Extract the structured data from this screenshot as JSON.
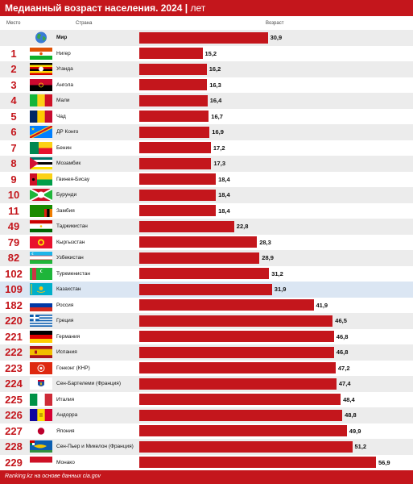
{
  "header": {
    "title": "Медианный возраст населения. 2024",
    "unit": "лет"
  },
  "columns": {
    "rank": "Место",
    "country": "Страна",
    "value": "Возраст"
  },
  "footer": {
    "source": "Ranking.kz на основе данных cia.gov"
  },
  "colors": {
    "accent": "#c4161c",
    "highlight_row": "#dbe6f3",
    "alt_row": "#ececec"
  },
  "chart_data": {
    "type": "bar",
    "orientation": "horizontal",
    "title": "Медианный возраст населения. 2024",
    "unit": "лет",
    "xlim": [
      0,
      60
    ],
    "highlight": "Казахстан",
    "rows": [
      {
        "rank": "",
        "country": "Мир",
        "value": 30.9,
        "label": "30,9",
        "flag": "globe-icon"
      },
      {
        "rank": "1",
        "country": "Нигер",
        "value": 15.2,
        "label": "15,2",
        "flag": "niger-flag-icon"
      },
      {
        "rank": "2",
        "country": "Уганда",
        "value": 16.2,
        "label": "16,2",
        "flag": "uganda-flag-icon"
      },
      {
        "rank": "3",
        "country": "Ангола",
        "value": 16.3,
        "label": "16,3",
        "flag": "angola-flag-icon"
      },
      {
        "rank": "4",
        "country": "Мали",
        "value": 16.4,
        "label": "16,4",
        "flag": "mali-flag-icon"
      },
      {
        "rank": "5",
        "country": "Чад",
        "value": 16.7,
        "label": "16,7",
        "flag": "chad-flag-icon"
      },
      {
        "rank": "6",
        "country": "ДР Конго",
        "value": 16.9,
        "label": "16,9",
        "flag": "dr-congo-flag-icon"
      },
      {
        "rank": "7",
        "country": "Бенин",
        "value": 17.2,
        "label": "17,2",
        "flag": "benin-flag-icon"
      },
      {
        "rank": "8",
        "country": "Мозамбик",
        "value": 17.3,
        "label": "17,3",
        "flag": "mozambique-flag-icon"
      },
      {
        "rank": "9",
        "country": "Гвинея-Бисау",
        "value": 18.4,
        "label": "18,4",
        "flag": "guinea-bissau-flag-icon"
      },
      {
        "rank": "10",
        "country": "Бурунди",
        "value": 18.4,
        "label": "18,4",
        "flag": "burundi-flag-icon"
      },
      {
        "rank": "11",
        "country": "Замбия",
        "value": 18.4,
        "label": "18,4",
        "flag": "zambia-flag-icon"
      },
      {
        "rank": "49",
        "country": "Таджикистан",
        "value": 22.8,
        "label": "22,8",
        "flag": "tajikistan-flag-icon"
      },
      {
        "rank": "79",
        "country": "Кыргызстан",
        "value": 28.3,
        "label": "28,3",
        "flag": "kyrgyzstan-flag-icon"
      },
      {
        "rank": "82",
        "country": "Узбекистан",
        "value": 28.9,
        "label": "28,9",
        "flag": "uzbekistan-flag-icon"
      },
      {
        "rank": "102",
        "country": "Туркменистан",
        "value": 31.2,
        "label": "31,2",
        "flag": "turkmenistan-flag-icon"
      },
      {
        "rank": "109",
        "country": "Казахстан",
        "value": 31.9,
        "label": "31,9",
        "flag": "kazakhstan-flag-icon"
      },
      {
        "rank": "182",
        "country": "Россия",
        "value": 41.9,
        "label": "41,9",
        "flag": "russia-flag-icon"
      },
      {
        "rank": "220",
        "country": "Греция",
        "value": 46.5,
        "label": "46,5",
        "flag": "greece-flag-icon"
      },
      {
        "rank": "221",
        "country": "Германия",
        "value": 46.8,
        "label": "46,8",
        "flag": "germany-flag-icon"
      },
      {
        "rank": "222",
        "country": "Испания",
        "value": 46.8,
        "label": "46,8",
        "flag": "spain-flag-icon"
      },
      {
        "rank": "223",
        "country": "Гонконг (КНР)",
        "value": 47.2,
        "label": "47,2",
        "flag": "hong-kong-flag-icon"
      },
      {
        "rank": "224",
        "country": "Сен-Бартелеми (Франция)",
        "value": 47.4,
        "label": "47,4",
        "flag": "saint-barthelemy-flag-icon"
      },
      {
        "rank": "225",
        "country": "Италия",
        "value": 48.4,
        "label": "48,4",
        "flag": "italy-flag-icon"
      },
      {
        "rank": "226",
        "country": "Андорра",
        "value": 48.8,
        "label": "48,8",
        "flag": "andorra-flag-icon"
      },
      {
        "rank": "227",
        "country": "Япония",
        "value": 49.9,
        "label": "49,9",
        "flag": "japan-flag-icon"
      },
      {
        "rank": "228",
        "country": "Сен-Пьер и Микелон (Франция)",
        "value": 51.2,
        "label": "51,2",
        "flag": "saint-pierre-miquelon-flag-icon"
      },
      {
        "rank": "229",
        "country": "Монако",
        "value": 56.9,
        "label": "56,9",
        "flag": "monaco-flag-icon"
      }
    ]
  }
}
